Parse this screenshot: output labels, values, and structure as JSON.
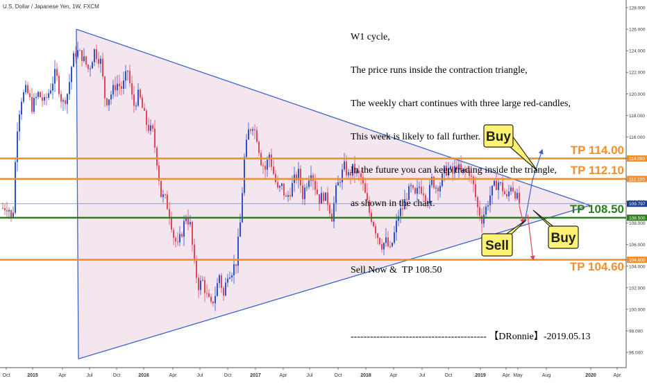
{
  "chart_data": {
    "type": "candlestick",
    "title": "U.S. Dollar / Japanese Yen, 1W, FXCM",
    "x_ticks": [
      "Oct",
      "2015",
      "Apr",
      "Jul",
      "Oct",
      "2016",
      "Apr",
      "Jul",
      "Oct",
      "2017",
      "Apr",
      "Jul",
      "Oct",
      "2018",
      "Apr",
      "Jul",
      "Oct",
      "2019",
      "Apr",
      "May",
      "Aug",
      "2020",
      "Apr"
    ],
    "y_ticks": [
      "128.000",
      "126.000",
      "124.000",
      "122.000",
      "120.000",
      "118.000",
      "116.000",
      "114.000",
      "112.000",
      "110.000",
      "108.000",
      "106.000",
      "104.000",
      "102.000",
      "100.000",
      "98.000",
      "96.000"
    ],
    "ylim": [
      94.5,
      128.5
    ],
    "grid": false,
    "price_labels": [
      {
        "text": "114.000",
        "value": 114.0,
        "color": "#f0902c"
      },
      {
        "text": "112.100",
        "value": 112.1,
        "color": "#f0902c"
      },
      {
        "text": "109.797",
        "value": 109.797,
        "color": "#1f3f8f"
      },
      {
        "text": "108.500",
        "value": 108.5,
        "color": "#2e7d1f"
      },
      {
        "text": "104.600",
        "value": 104.6,
        "color": "#f0902c"
      }
    ],
    "horizontal_levels": [
      {
        "label": "TP 114.00",
        "value": 114.0,
        "color": "#f0902c"
      },
      {
        "label": "TP 112.10",
        "value": 112.1,
        "color": "#f0902c"
      },
      {
        "label": "TP 108.50",
        "value": 108.5,
        "color": "#2e7d1f"
      },
      {
        "label": "TP 104.60",
        "value": 104.6,
        "color": "#f0902c"
      }
    ],
    "current_price": 109.797,
    "callouts": [
      "Buy",
      "Sell",
      "Buy"
    ],
    "colors": {
      "up": "#2c52c9",
      "down": "#e0455a",
      "triangle_fill": "#f4e6ef",
      "triangle_line": "#3b64c5",
      "orange": "#f0902c",
      "green": "#2e7d1f"
    }
  },
  "annotation": [
    "W1 cycle,",
    "The price runs inside the contraction triangle,",
    "The weekly chart continues with three large red-candles,",
    "This week is likely to fall further.",
    "In the future you can keep trading inside the triangle,",
    "as shown in the chart.",
    "",
    "Sell Now &  TP 108.50",
    "",
    "------------------------------------------ 【DRonnie】-2019.05.13"
  ]
}
